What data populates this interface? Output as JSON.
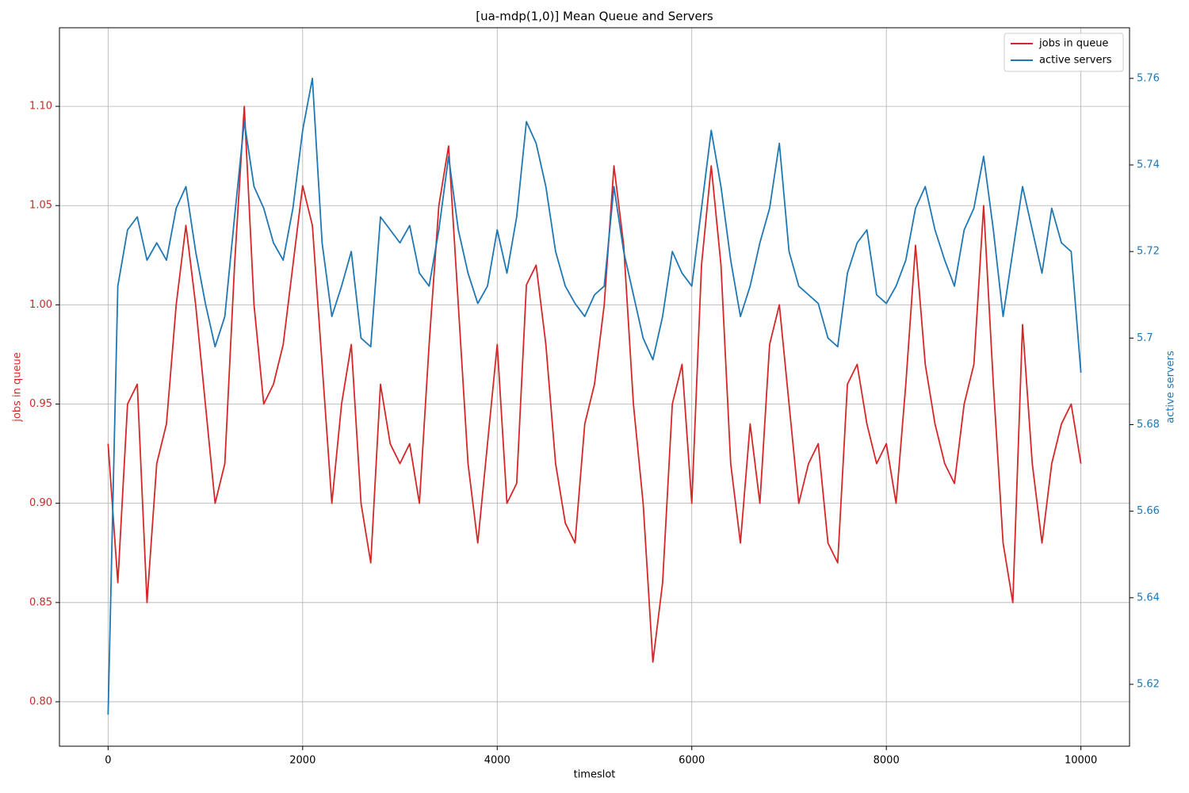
{
  "chart_data": {
    "type": "line",
    "title": "[ua-mdp(1,0)] Mean Queue and Servers",
    "xlabel": "timeslot",
    "ylabel": "jobs in queue",
    "y2label": "active servers",
    "x": [
      0,
      100,
      200,
      300,
      400,
      500,
      600,
      700,
      800,
      900,
      1000,
      1100,
      1200,
      1300,
      1400,
      1500,
      1600,
      1700,
      1800,
      1900,
      2000,
      2100,
      2200,
      2300,
      2400,
      2500,
      2600,
      2700,
      2800,
      2900,
      3000,
      3100,
      3200,
      3300,
      3400,
      3500,
      3600,
      3700,
      3800,
      3900,
      4000,
      4100,
      4200,
      4300,
      4400,
      4500,
      4600,
      4700,
      4800,
      4900,
      5000,
      5100,
      5200,
      5300,
      5400,
      5500,
      5600,
      5700,
      5800,
      5900,
      6000,
      6100,
      6200,
      6300,
      6400,
      6500,
      6600,
      6700,
      6800,
      6900,
      7000,
      7100,
      7200,
      7300,
      7400,
      7500,
      7600,
      7700,
      7800,
      7900,
      8000,
      8100,
      8200,
      8300,
      8400,
      8500,
      8600,
      8700,
      8800,
      8900,
      9000,
      9100,
      9200,
      9300,
      9400,
      9500,
      9600,
      9700,
      9800,
      9900,
      10000
    ],
    "series": [
      {
        "name": "jobs in queue",
        "color": "#d62728",
        "axis": "y",
        "values": [
          0.93,
          0.86,
          0.95,
          0.96,
          0.85,
          0.92,
          0.94,
          1.0,
          1.04,
          1.0,
          0.95,
          0.9,
          0.92,
          1.02,
          1.1,
          1.0,
          0.95,
          0.96,
          0.98,
          1.02,
          1.06,
          1.04,
          0.97,
          0.9,
          0.95,
          0.98,
          0.9,
          0.87,
          0.96,
          0.93,
          0.92,
          0.93,
          0.9,
          0.98,
          1.05,
          1.08,
          1.0,
          0.92,
          0.88,
          0.93,
          0.98,
          0.9,
          0.91,
          1.01,
          1.02,
          0.98,
          0.92,
          0.89,
          0.88,
          0.94,
          0.96,
          1.0,
          1.07,
          1.03,
          0.95,
          0.9,
          0.82,
          0.86,
          0.95,
          0.97,
          0.9,
          1.02,
          1.07,
          1.02,
          0.92,
          0.88,
          0.94,
          0.9,
          0.98,
          1.0,
          0.95,
          0.9,
          0.92,
          0.93,
          0.88,
          0.87,
          0.96,
          0.97,
          0.94,
          0.92,
          0.93,
          0.9,
          0.96,
          1.03,
          0.97,
          0.94,
          0.92,
          0.91,
          0.95,
          0.97,
          1.05,
          0.96,
          0.88,
          0.85,
          0.99,
          0.92,
          0.88,
          0.92,
          0.94,
          0.95,
          0.92
        ]
      },
      {
        "name": "active servers",
        "color": "#1f77b4",
        "axis": "y2",
        "values": [
          5.613,
          5.712,
          5.725,
          5.728,
          5.718,
          5.722,
          5.718,
          5.73,
          5.735,
          5.72,
          5.708,
          5.698,
          5.705,
          5.728,
          5.75,
          5.735,
          5.73,
          5.722,
          5.718,
          5.73,
          5.748,
          5.76,
          5.722,
          5.705,
          5.712,
          5.72,
          5.7,
          5.698,
          5.728,
          5.725,
          5.722,
          5.726,
          5.715,
          5.712,
          5.725,
          5.742,
          5.725,
          5.715,
          5.708,
          5.712,
          5.725,
          5.715,
          5.728,
          5.75,
          5.745,
          5.735,
          5.72,
          5.712,
          5.708,
          5.705,
          5.71,
          5.712,
          5.735,
          5.72,
          5.71,
          5.7,
          5.695,
          5.705,
          5.72,
          5.715,
          5.712,
          5.73,
          5.748,
          5.735,
          5.718,
          5.705,
          5.712,
          5.722,
          5.73,
          5.745,
          5.72,
          5.712,
          5.71,
          5.708,
          5.7,
          5.698,
          5.715,
          5.722,
          5.725,
          5.71,
          5.708,
          5.712,
          5.718,
          5.73,
          5.735,
          5.725,
          5.718,
          5.712,
          5.725,
          5.73,
          5.742,
          5.725,
          5.705,
          5.72,
          5.735,
          5.725,
          5.715,
          5.73,
          5.722,
          5.72,
          5.692
        ]
      }
    ],
    "xlim": [
      -500,
      10500
    ],
    "xticks": [
      0,
      2000,
      4000,
      6000,
      8000,
      10000
    ],
    "ylim": [
      0.7776,
      1.1396
    ],
    "yticks": [
      {
        "value": 0.8,
        "label": "0.80"
      },
      0.85,
      {
        "value": 0.9,
        "label": "0.90"
      },
      0.95,
      {
        "value": 1.0,
        "label": "1.00"
      },
      1.05,
      {
        "value": 1.1,
        "label": "1.10"
      }
    ],
    "y2lim": [
      5.6057,
      5.7717
    ],
    "y2ticks": [
      5.62,
      5.64,
      5.66,
      5.68,
      5.7,
      5.72,
      5.74,
      5.76
    ],
    "grid": true,
    "legend": "upper right"
  }
}
